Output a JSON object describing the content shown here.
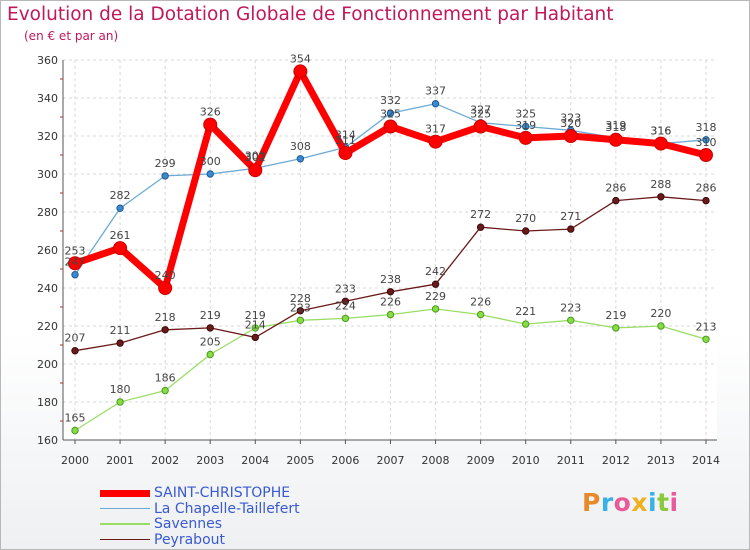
{
  "title": "Evolution de la Dotation Globale de Fonctionnement par Habitant",
  "subtitle": "(en € et par an)",
  "chart_data": {
    "type": "line",
    "x": [
      "2000",
      "2001",
      "2002",
      "2003",
      "2004",
      "2005",
      "2006",
      "2007",
      "2008",
      "2009",
      "2010",
      "2011",
      "2012",
      "2013",
      "2014"
    ],
    "ylim": [
      160,
      360
    ],
    "yticks": [
      160,
      180,
      200,
      220,
      240,
      260,
      280,
      300,
      320,
      340,
      360
    ],
    "grid": true,
    "legend_position": "bottom-left",
    "series": [
      {
        "name": "SAINT-CHRISTOPHE",
        "color": "#ff0000",
        "values": [
          253,
          261,
          240,
          326,
          302,
          354,
          311,
          325,
          317,
          325,
          319,
          320,
          318,
          316,
          310
        ],
        "labels": [
          "253",
          "261",
          "240",
          "326",
          "302",
          "354",
          "311",
          "325",
          "317",
          "325",
          "319",
          "320",
          "318",
          "316",
          "310"
        ]
      },
      {
        "name": "La Chapelle-Taillefert",
        "color": "#6aaad4",
        "values": [
          247,
          282,
          299,
          300,
          303,
          308,
          314,
          332,
          337,
          327,
          325,
          323,
          319,
          316,
          318
        ],
        "labels": [
          "247",
          "282",
          "299",
          "300",
          "303",
          "308",
          "314",
          "332",
          "337",
          "327",
          "325",
          "323",
          "319",
          "316",
          "318"
        ]
      },
      {
        "name": "Savennes",
        "color": "#99dd66",
        "values": [
          165,
          180,
          186,
          205,
          219,
          223,
          224,
          226,
          229,
          226,
          221,
          223,
          219,
          220,
          213
        ],
        "labels": [
          "165",
          "180",
          "186",
          "205",
          "219",
          "223",
          "224",
          "226",
          "229",
          "226",
          "221",
          "223",
          "219",
          "220",
          "213"
        ]
      },
      {
        "name": "Peyrabout",
        "color": "#6b1a1a",
        "values": [
          207,
          211,
          218,
          219,
          214,
          228,
          233,
          238,
          242,
          272,
          270,
          271,
          286,
          288,
          286
        ],
        "labels": [
          "207",
          "211",
          "218",
          "219",
          "214",
          "228",
          "233",
          "238",
          "242",
          "272",
          "270",
          "271",
          "286",
          "288",
          "286"
        ]
      }
    ]
  },
  "logo": {
    "letters": [
      {
        "char": "P",
        "color": "#e98a2a"
      },
      {
        "char": "r",
        "color": "#3ab0e8"
      },
      {
        "char": "o",
        "color": "#e85a9a"
      },
      {
        "char": "x",
        "color": "#f0b020"
      },
      {
        "char": "i",
        "color": "#3ab0e8"
      },
      {
        "char": "t",
        "color": "#8cc83c"
      },
      {
        "char": "i",
        "color": "#e85a9a"
      }
    ]
  }
}
